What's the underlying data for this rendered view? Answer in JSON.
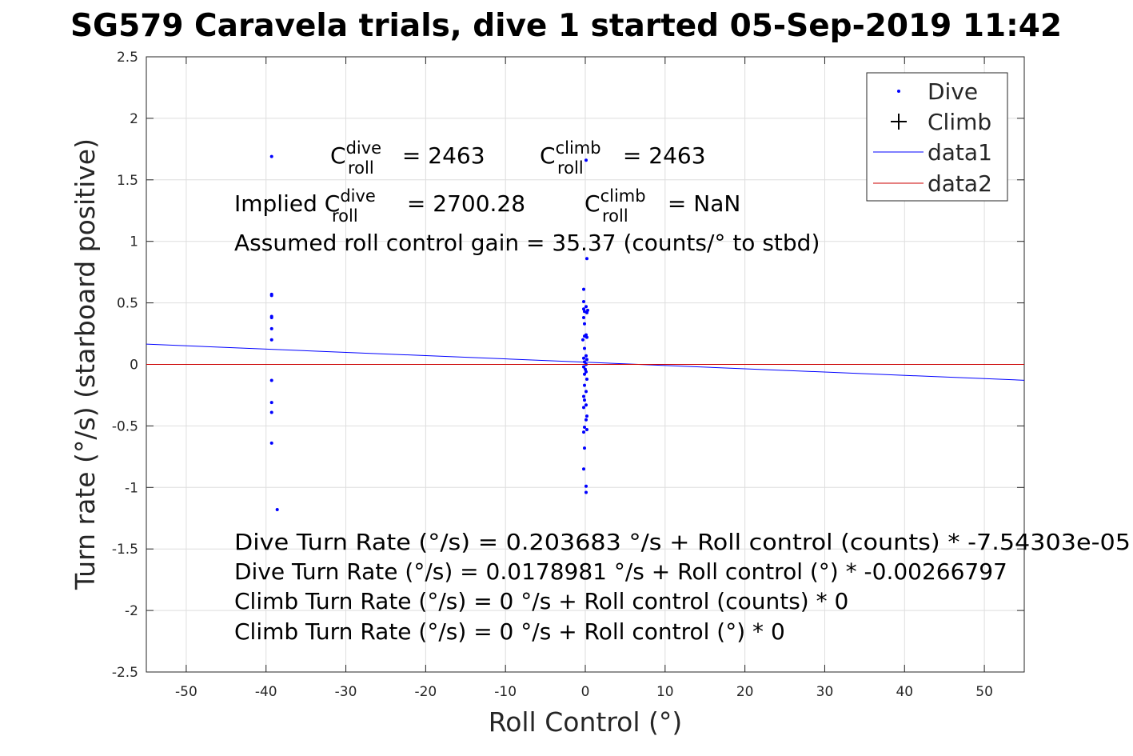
{
  "chart_data": {
    "type": "scatter",
    "title": "SG579 Caravela trials, dive 1 started 05-Sep-2019 11:42",
    "xlabel": "Roll Control (°)",
    "ylabel": "Turn rate (°/s) (starboard positive)",
    "xlim": [
      -55,
      55
    ],
    "ylim": [
      -2.5,
      2.5
    ],
    "xticks": [
      -50,
      -40,
      -30,
      -20,
      -10,
      0,
      10,
      20,
      30,
      40,
      50
    ],
    "yticks": [
      -2.5,
      -2,
      -1.5,
      -1,
      -0.5,
      0,
      0.5,
      1,
      1.5,
      2,
      2.5
    ],
    "xtick_labels": [
      "-50",
      "-40",
      "-30",
      "-20",
      "-10",
      "0",
      "10",
      "20",
      "30",
      "40",
      "50"
    ],
    "ytick_labels": [
      "-2.5",
      "-2",
      "-1.5",
      "-1",
      "-0.5",
      "0",
      "0.5",
      "1",
      "1.5",
      "2",
      "2.5"
    ],
    "grid": true,
    "legend_position": "top-right",
    "legend": [
      {
        "label": "Dive",
        "marker": "dot",
        "color": "#0000ff"
      },
      {
        "label": "Climb",
        "marker": "plus",
        "color": "#000000"
      },
      {
        "label": "data1",
        "marker": "line",
        "color": "#0000ff"
      },
      {
        "label": "data2",
        "marker": "line",
        "color": "#cc0000"
      }
    ],
    "series": [
      {
        "name": "Dive",
        "color": "#0000ff",
        "points": [
          [
            -39.3,
            1.69
          ],
          [
            -39.3,
            0.57
          ],
          [
            -39.3,
            0.56
          ],
          [
            -39.3,
            0.39
          ],
          [
            -39.3,
            0.38
          ],
          [
            -39.3,
            0.29
          ],
          [
            -39.3,
            0.2
          ],
          [
            -39.3,
            -0.13
          ],
          [
            -39.3,
            -0.31
          ],
          [
            -39.3,
            -0.39
          ],
          [
            -39.3,
            -0.64
          ],
          [
            -38.6,
            -1.18
          ],
          [
            0.1,
            1.66
          ],
          [
            0.2,
            0.86
          ],
          [
            -0.2,
            0.61
          ],
          [
            -0.2,
            0.51
          ],
          [
            0.1,
            0.47
          ],
          [
            -0.2,
            0.45
          ],
          [
            0.3,
            0.44
          ],
          [
            -0.1,
            0.43
          ],
          [
            0.2,
            0.42
          ],
          [
            -0.2,
            0.38
          ],
          [
            -0.1,
            0.33
          ],
          [
            0.1,
            0.24
          ],
          [
            -0.1,
            0.23
          ],
          [
            0.2,
            0.22
          ],
          [
            -0.3,
            0.2
          ],
          [
            -0.1,
            0.13
          ],
          [
            0.1,
            0.07
          ],
          [
            -0.2,
            0.05
          ],
          [
            0.2,
            0.04
          ],
          [
            -0.1,
            0.02
          ],
          [
            0.1,
            0.0
          ],
          [
            -0.2,
            -0.02
          ],
          [
            0.0,
            -0.04
          ],
          [
            0.1,
            -0.06
          ],
          [
            -0.1,
            -0.08
          ],
          [
            0.2,
            -0.12
          ],
          [
            -0.1,
            -0.17
          ],
          [
            0.1,
            -0.22
          ],
          [
            -0.2,
            -0.26
          ],
          [
            -0.1,
            -0.29
          ],
          [
            0.1,
            -0.33
          ],
          [
            -0.2,
            -0.35
          ],
          [
            0.2,
            -0.42
          ],
          [
            0.1,
            -0.45
          ],
          [
            -0.1,
            -0.51
          ],
          [
            0.2,
            -0.53
          ],
          [
            -0.2,
            -0.55
          ],
          [
            -0.1,
            -0.68
          ],
          [
            -0.2,
            -0.85
          ],
          [
            0.1,
            -0.99
          ],
          [
            0.1,
            -1.04
          ]
        ]
      },
      {
        "name": "data1",
        "type": "line",
        "color": "#0000ff",
        "points": [
          [
            -55,
            0.1646
          ],
          [
            55,
            -0.1289
          ]
        ]
      },
      {
        "name": "data2",
        "type": "line",
        "color": "#cc0000",
        "points": [
          [
            -55,
            0
          ],
          [
            55,
            0
          ]
        ]
      }
    ],
    "annotations": {
      "c_dive_base": "C",
      "c_dive_sup": "dive",
      "c_dive_sub": "roll",
      "c_dive_val": " = 2463",
      "c_climb_base": "C",
      "c_climb_sup": "climb",
      "c_climb_sub": "roll",
      "c_climb_val": " = 2463",
      "implied_prefix": "Implied C",
      "implied_sup": "dive",
      "implied_sub": "roll",
      "implied_val": " = 2700.28",
      "implied_climb_base": "C",
      "implied_climb_sup": "climb",
      "implied_climb_sub": "roll",
      "implied_climb_val": " = NaN",
      "gain": "Assumed roll control gain = 35.37 (counts/° to stbd)",
      "eq1": "Dive Turn Rate (°/s) = 0.203683 °/s + Roll control (counts) * -7.54303e-05",
      "eq2": "Dive Turn Rate (°/s) = 0.0178981 °/s + Roll control (°) * -0.00266797",
      "eq3": "Climb Turn Rate (°/s) = 0 °/s + Roll control (counts) * 0",
      "eq4": "Climb Turn Rate (°/s) = 0 °/s + Roll control (°) * 0"
    }
  }
}
